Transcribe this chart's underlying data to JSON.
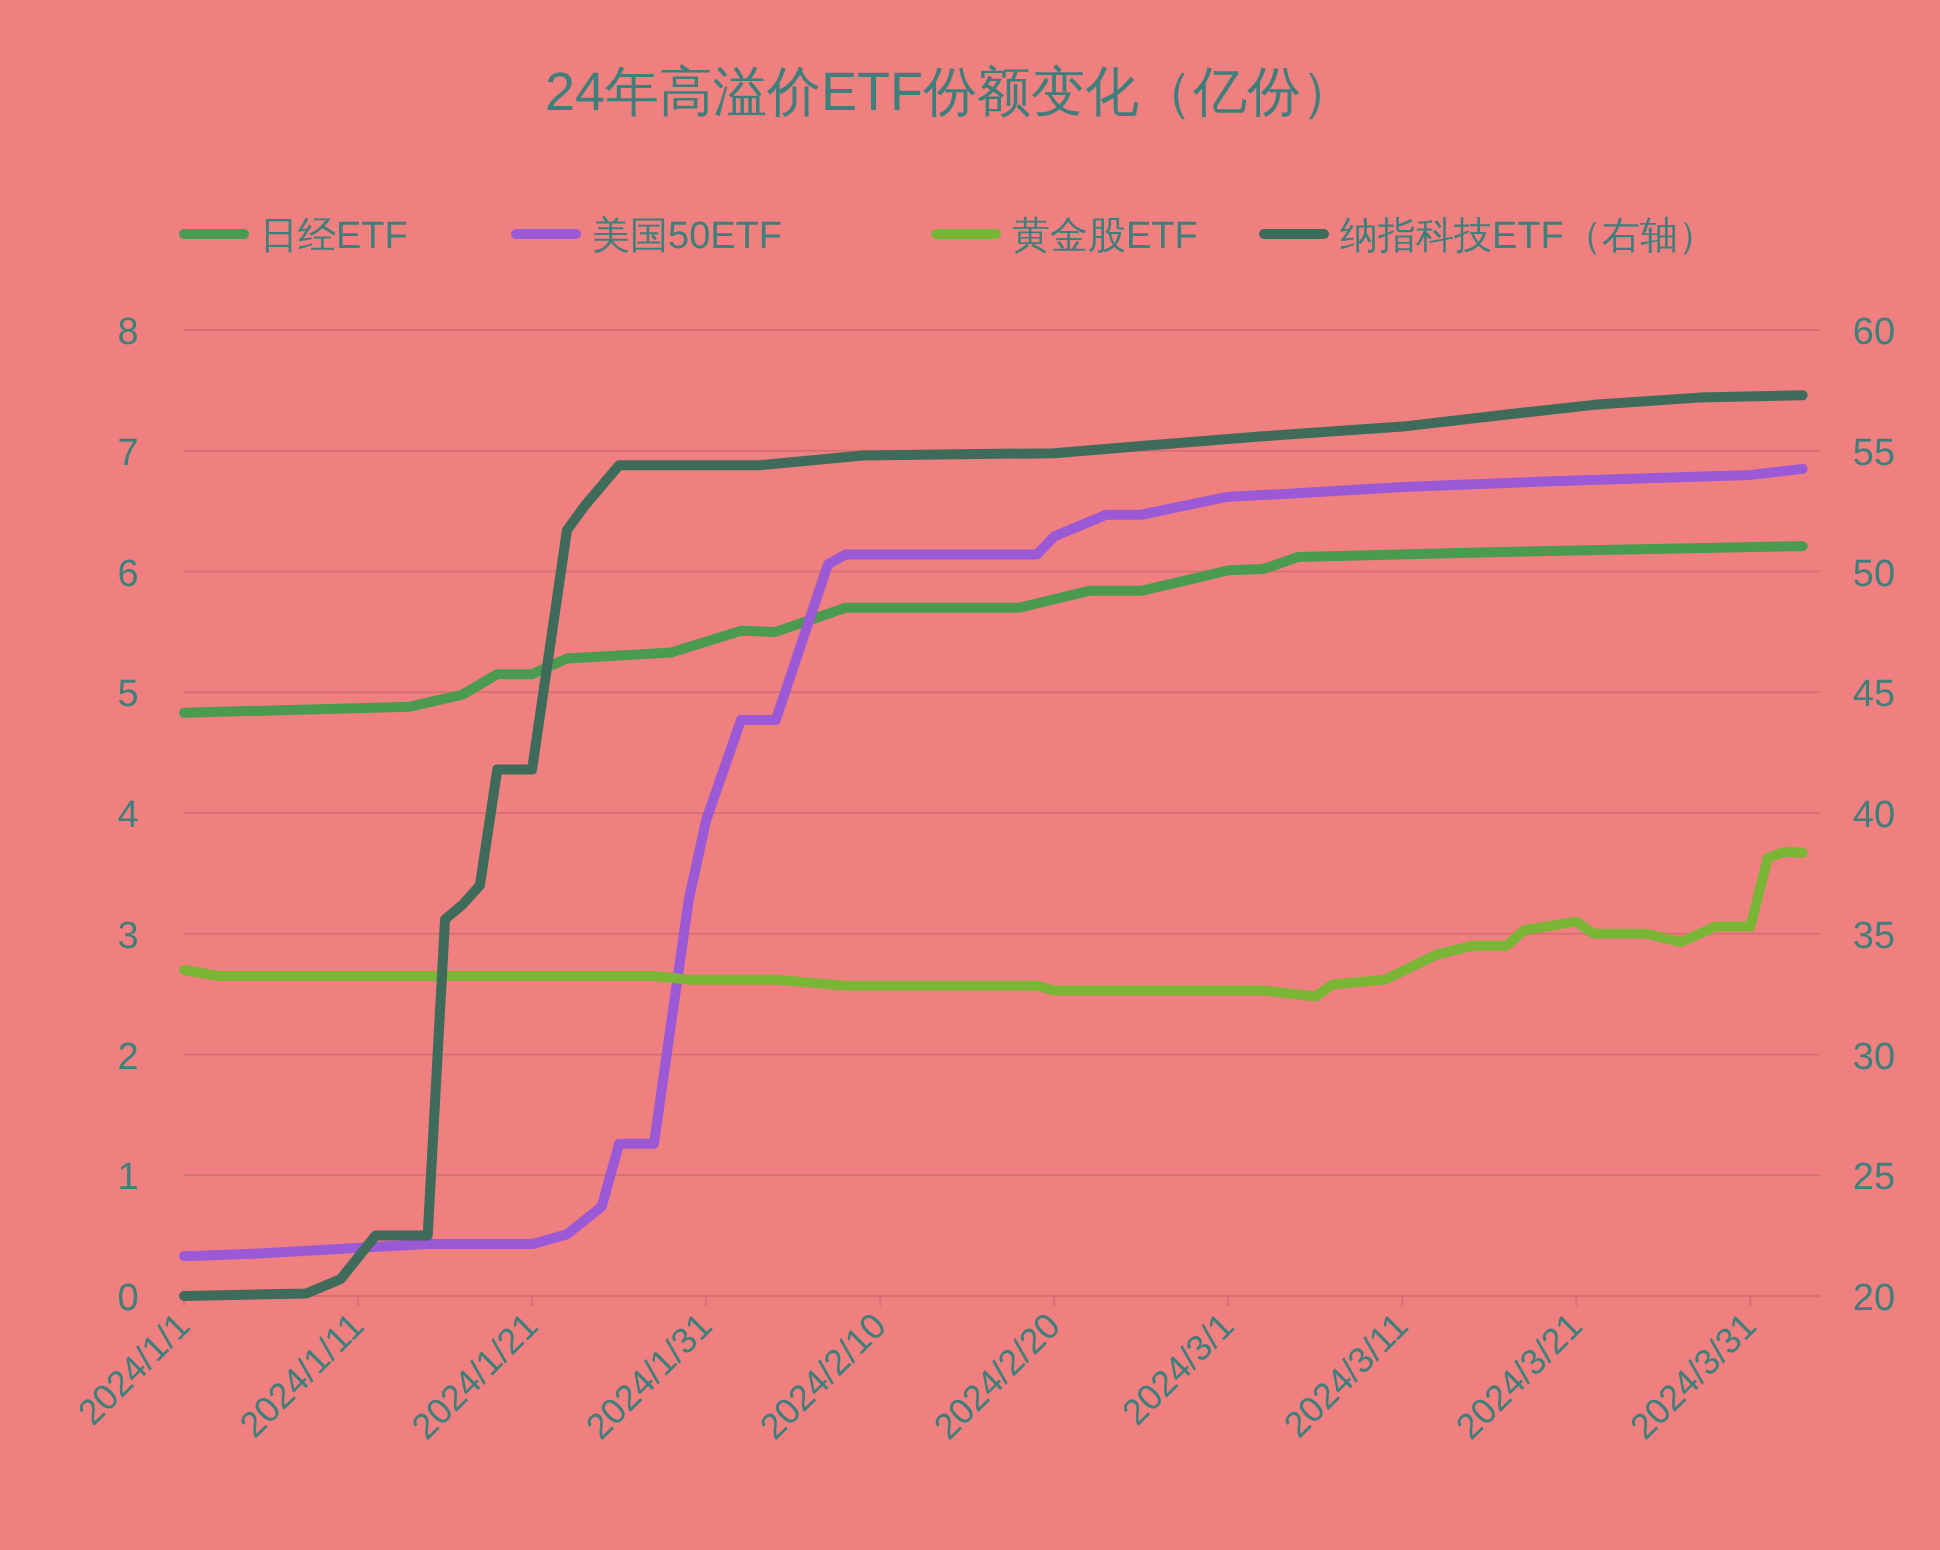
{
  "chart_data": {
    "type": "line",
    "title": "24年高溢价ETF份额变化（亿份）",
    "xlim": [
      "2024-01-01",
      "2024-04-04"
    ],
    "xticks": [
      {
        "value": "2024-01-01",
        "label": "2024/1/1"
      },
      {
        "value": "2024-01-11",
        "label": "2024/1/11"
      },
      {
        "value": "2024-01-21",
        "label": "2024/1/21"
      },
      {
        "value": "2024-01-31",
        "label": "2024/1/31"
      },
      {
        "value": "2024-02-10",
        "label": "2024/2/10"
      },
      {
        "value": "2024-02-20",
        "label": "2024/2/20"
      },
      {
        "value": "2024-03-01",
        "label": "2024/3/1"
      },
      {
        "value": "2024-03-11",
        "label": "2024/3/11"
      },
      {
        "value": "2024-03-21",
        "label": "2024/3/21"
      },
      {
        "value": "2024-03-31",
        "label": "2024/3/31"
      }
    ],
    "ylim": [
      0,
      8
    ],
    "yticks": [
      0,
      1,
      2,
      3,
      4,
      5,
      6,
      7,
      8
    ],
    "y2lim": [
      20,
      60
    ],
    "y2ticks": [
      20,
      25,
      30,
      35,
      40,
      45,
      50,
      55,
      60
    ],
    "grid": "y",
    "legend": "top",
    "marker": "none",
    "line_style": "solid",
    "series": [
      {
        "name": "日经ETF",
        "color": "#4a9a50",
        "x": [
          "2024-01-01",
          "2024-01-14",
          "2024-01-17",
          "2024-01-19",
          "2024-01-21",
          "2024-01-23",
          "2024-01-29",
          "2024-02-02",
          "2024-02-04",
          "2024-02-08",
          "2024-02-18",
          "2024-02-22",
          "2024-02-25",
          "2024-03-01",
          "2024-03-03",
          "2024-03-05",
          "2024-03-16",
          "2024-04-03"
        ],
        "values": [
          4.83,
          4.88,
          4.98,
          5.15,
          5.15,
          5.28,
          5.33,
          5.51,
          5.5,
          5.7,
          5.7,
          5.84,
          5.84,
          6.01,
          6.02,
          6.12,
          6.16,
          6.21
        ]
      },
      {
        "name": "美国50ETF",
        "color": "#9b59d6",
        "x": [
          "2024-01-01",
          "2024-01-05",
          "2024-01-15",
          "2024-01-21",
          "2024-01-23",
          "2024-01-25",
          "2024-01-26",
          "2024-01-28",
          "2024-01-30",
          "2024-01-31",
          "2024-02-02",
          "2024-02-04",
          "2024-02-07",
          "2024-02-08",
          "2024-02-19",
          "2024-02-20",
          "2024-02-23",
          "2024-02-25",
          "2024-03-01",
          "2024-03-04",
          "2024-03-11",
          "2024-03-20",
          "2024-03-31",
          "2024-04-03"
        ],
        "values": [
          0.33,
          0.35,
          0.43,
          0.43,
          0.51,
          0.74,
          1.26,
          1.26,
          3.28,
          3.94,
          4.77,
          4.77,
          6.06,
          6.14,
          6.14,
          6.29,
          6.47,
          6.47,
          6.62,
          6.64,
          6.7,
          6.75,
          6.8,
          6.85
        ]
      },
      {
        "name": "黄金股ETF",
        "color": "#7ab536",
        "x": [
          "2024-01-01",
          "2024-01-03",
          "2024-01-28",
          "2024-01-30",
          "2024-02-04",
          "2024-02-08",
          "2024-02-19",
          "2024-02-20",
          "2024-03-03",
          "2024-03-06",
          "2024-03-07",
          "2024-03-10",
          "2024-03-13",
          "2024-03-15",
          "2024-03-17",
          "2024-03-18",
          "2024-03-21",
          "2024-03-22",
          "2024-03-25",
          "2024-03-27",
          "2024-03-29",
          "2024-03-31",
          "2024-04-01",
          "2024-04-02",
          "2024-04-03"
        ],
        "values": [
          2.7,
          2.65,
          2.65,
          2.62,
          2.62,
          2.57,
          2.57,
          2.53,
          2.53,
          2.48,
          2.58,
          2.62,
          2.83,
          2.9,
          2.9,
          3.03,
          3.1,
          3.0,
          3.0,
          2.93,
          3.06,
          3.06,
          3.63,
          3.68,
          3.67
        ]
      },
      {
        "name": "纳指科技ETF（右轴）",
        "color": "#3e6b5a",
        "axis": "y2",
        "x": [
          "2024-01-01",
          "2024-01-08",
          "2024-01-10",
          "2024-01-12",
          "2024-01-15",
          "2024-01-16",
          "2024-01-17",
          "2024-01-18",
          "2024-01-19",
          "2024-01-21",
          "2024-01-23",
          "2024-01-24",
          "2024-01-26",
          "2024-02-03",
          "2024-02-09",
          "2024-02-20",
          "2024-02-25",
          "2024-03-03",
          "2024-03-11",
          "2024-03-17",
          "2024-03-22",
          "2024-03-28",
          "2024-04-03"
        ],
        "values": [
          20.0,
          20.1,
          20.7,
          22.5,
          22.5,
          35.6,
          36.2,
          37.0,
          41.8,
          41.8,
          51.7,
          52.7,
          54.4,
          54.4,
          54.8,
          54.9,
          55.2,
          55.6,
          56.0,
          56.5,
          56.9,
          57.2,
          57.3
        ]
      }
    ]
  }
}
